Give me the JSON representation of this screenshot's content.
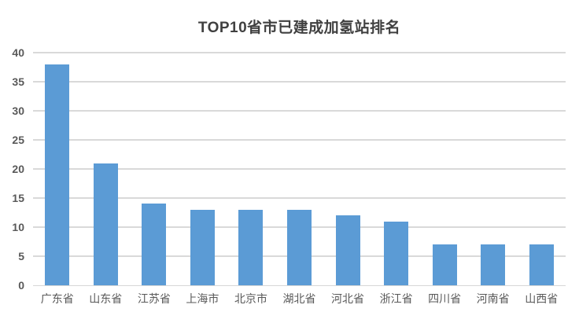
{
  "window": {
    "background": "#FFFFFF"
  },
  "colors": {
    "bar": "#5B9BD5",
    "gridline": "#D9D9D9",
    "axis_line": "#D6D6D6",
    "title_text": "#404040",
    "axis_text": "#595959",
    "background": "#FFFFFF"
  },
  "chart_data": {
    "type": "bar",
    "title": "TOP10省市已建成加氢站排名",
    "categories": [
      "广东省",
      "山东省",
      "江苏省",
      "上海市",
      "北京市",
      "湖北省",
      "河北省",
      "浙江省",
      "四川省",
      "河南省",
      "山西省"
    ],
    "values": [
      38,
      21,
      14,
      13,
      13,
      13,
      12,
      11,
      7,
      7,
      7
    ],
    "xlabel": "",
    "ylabel": "",
    "ylim": [
      0,
      40
    ],
    "yticks": [
      0,
      5,
      10,
      15,
      20,
      25,
      30,
      35,
      40
    ],
    "grid": "horizontal",
    "legend_position": "none",
    "data_labels": "none"
  }
}
